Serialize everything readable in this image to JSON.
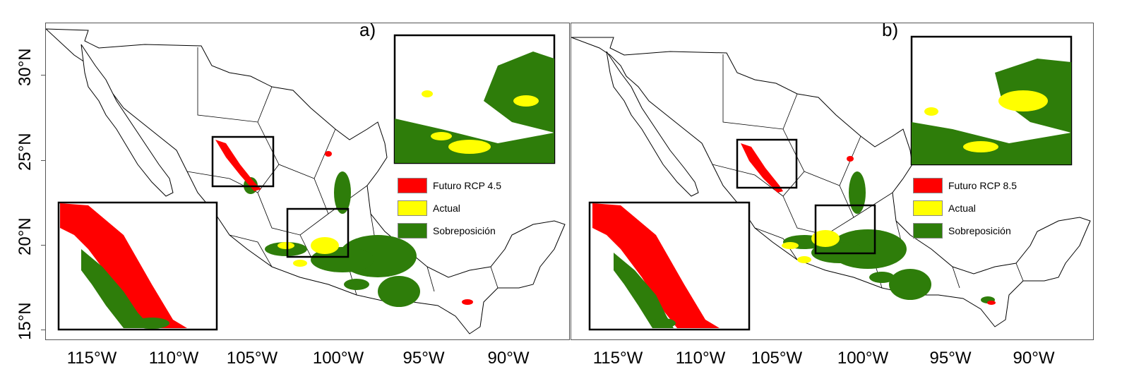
{
  "panels": [
    {
      "label": "a)",
      "legend": [
        "Futuro RCP 4.5",
        "Actual",
        "Sobreposición"
      ]
    },
    {
      "label": "b)",
      "legend": [
        "Futuro RCP 8.5",
        "Actual",
        "Sobreposición"
      ]
    }
  ],
  "colors": {
    "future": "#ff0000",
    "actual": "#ffff00",
    "overlap": "#2e7d0a",
    "border": "#000000"
  },
  "y_ticks": [
    "30°N",
    "25°N",
    "20°N",
    "15°N"
  ],
  "x_ticks": [
    "115°W",
    "110°W",
    "105°W",
    "100°W",
    "95°W",
    "90°W"
  ]
}
